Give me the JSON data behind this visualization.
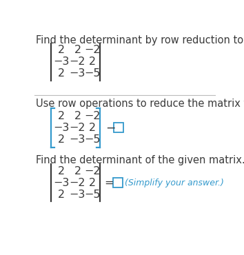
{
  "title1": "Find the determinant by row reduction to echelon form.",
  "title2": "Use row operations to reduce the matrix to echelon form.",
  "title3": "Find the determinant of the given matrix.",
  "matrix_rows": [
    [
      "2",
      "2",
      "−2"
    ],
    [
      "−3",
      "−2",
      "2"
    ],
    [
      "2",
      "−3",
      "−5"
    ]
  ],
  "text_color": "#3a3a3a",
  "highlight_color": "#3399cc",
  "bg_color": "#ffffff",
  "divider_color": "#bbbbbb",
  "pipe_color": "#3a3a3a",
  "font_size_title": 10.5,
  "font_size_matrix": 11.5
}
